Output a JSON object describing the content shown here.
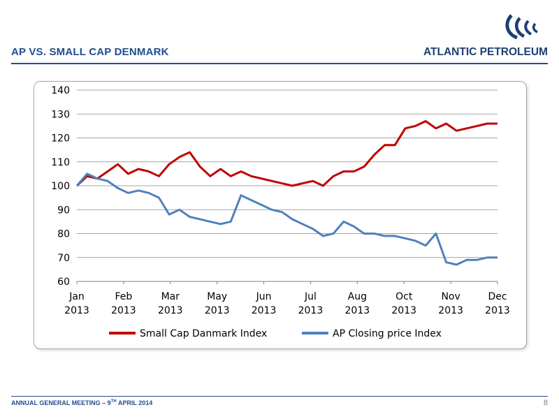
{
  "header": {
    "title": "AP VS. SMALL CAP DENMARK"
  },
  "logo": {
    "text": "ATLANTIC PETROLEUM",
    "icon": "atlantic-petroleum-wave-logo",
    "color": "#1d3f73"
  },
  "footer": {
    "text_before": "ANNUAL GENERAL MEETING – 9",
    "superscript": "TH",
    "text_after": " APRIL 2014",
    "page_number": "8"
  },
  "colors": {
    "accent": "#1f4e8c",
    "series_red": "#c00000",
    "series_blue": "#4f81bd"
  },
  "chart_data": {
    "type": "line",
    "y_ticks": [
      60,
      70,
      80,
      90,
      100,
      110,
      120,
      130,
      140
    ],
    "ylim": [
      60,
      140
    ],
    "x_ticks": [
      {
        "month": "Jan",
        "year": "2013"
      },
      {
        "month": "Feb",
        "year": "2013"
      },
      {
        "month": "Mar",
        "year": "2013"
      },
      {
        "month": "May",
        "year": "2013"
      },
      {
        "month": "Jun",
        "year": "2013"
      },
      {
        "month": "Jul",
        "year": "2013"
      },
      {
        "month": "Aug",
        "year": "2013"
      },
      {
        "month": "Oct",
        "year": "2013"
      },
      {
        "month": "Nov",
        "year": "2013"
      },
      {
        "month": "Dec",
        "year": "2013"
      }
    ],
    "grid": "horizontal",
    "legend": "bottom",
    "series": [
      {
        "name": "Small Cap Danmark Index",
        "color": "#c00000",
        "values": [
          100,
          104,
          103,
          106,
          109,
          105,
          107,
          106,
          104,
          109,
          112,
          114,
          108,
          104,
          107,
          104,
          106,
          104,
          103,
          102,
          101,
          100,
          101,
          102,
          100,
          104,
          106,
          106,
          108,
          113,
          117,
          117,
          124,
          125,
          127,
          124,
          126,
          123,
          124,
          125,
          126,
          126
        ]
      },
      {
        "name": "AP Closing price Index",
        "color": "#4f81bd",
        "values": [
          100,
          105,
          103,
          102,
          99,
          97,
          98,
          97,
          95,
          88,
          90,
          87,
          86,
          85,
          84,
          85,
          96,
          94,
          92,
          90,
          89,
          86,
          84,
          82,
          79,
          80,
          85,
          83,
          80,
          80,
          79,
          79,
          78,
          77,
          75,
          80,
          68,
          67,
          69,
          69,
          70,
          70
        ]
      }
    ]
  }
}
